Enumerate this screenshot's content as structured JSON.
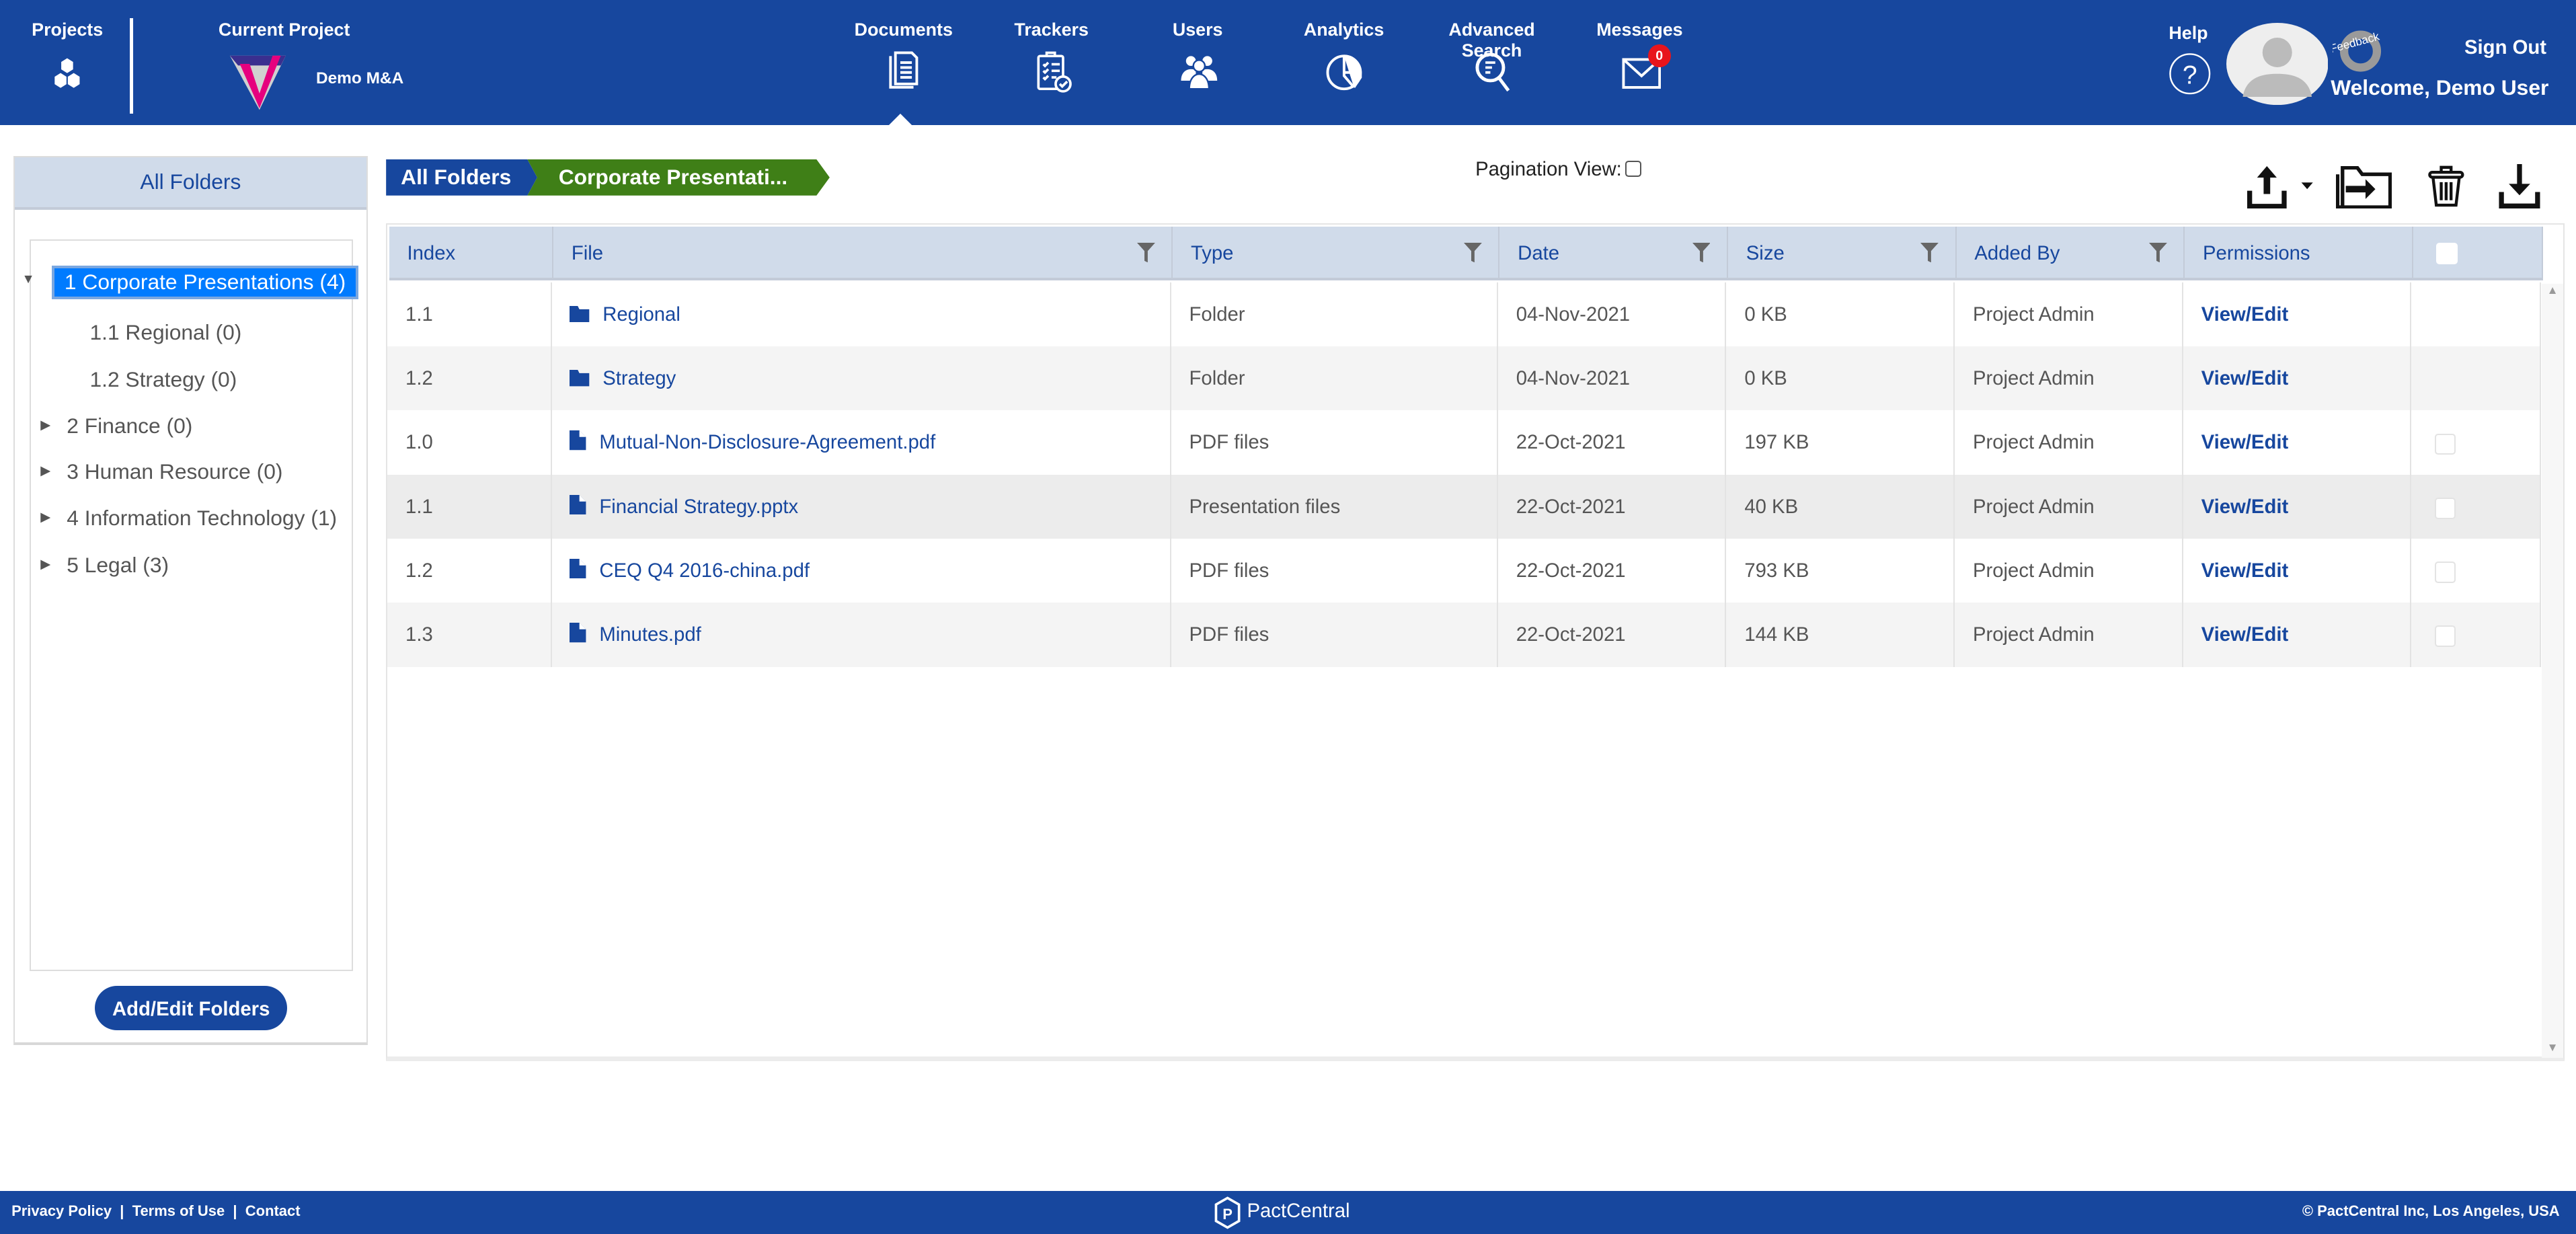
{
  "header": {
    "projects_label": "Projects",
    "current_project_label": "Current Project",
    "project_name": "Demo M&A",
    "nav": [
      {
        "label": "Documents",
        "icon": "documents-icon",
        "active": true
      },
      {
        "label": "Trackers",
        "icon": "clipboard-check-icon"
      },
      {
        "label": "Users",
        "icon": "users-icon"
      },
      {
        "label": "Analytics",
        "icon": "pie-chart-icon"
      },
      {
        "label": "Advanced Search",
        "icon": "search-icon"
      },
      {
        "label": "Messages",
        "icon": "envelope-icon",
        "badge": "0"
      }
    ],
    "help_label": "Help",
    "feedback_label": "Feedback",
    "sign_out": "Sign Out",
    "welcome": "Welcome, Demo User",
    "brand_color": "#17479e"
  },
  "sidebar": {
    "title": "All Folders",
    "tree": [
      {
        "label": "1 Corporate Presentations (4)",
        "expanded": true,
        "selected": true
      },
      {
        "label": "1.1 Regional (0)"
      },
      {
        "label": "1.2 Strategy (0)"
      },
      {
        "label": "2 Finance (0)"
      },
      {
        "label": "3 Human Resource (0)"
      },
      {
        "label": "4 Information Technology (1)"
      },
      {
        "label": "5 Legal (3)"
      }
    ],
    "add_edit_button": "Add/Edit Folders"
  },
  "breadcrumb": [
    "All Folders",
    "Corporate Presentati..."
  ],
  "pagination_view_label": "Pagination View:",
  "table": {
    "columns": [
      "Index",
      "File",
      "Type",
      "Date",
      "Size",
      "Added By",
      "Permissions"
    ],
    "rows": [
      {
        "index": "1.1",
        "file": "Regional",
        "kind": "folder",
        "type": "Folder",
        "date": "04-Nov-2021",
        "size": "0 KB",
        "added_by": "Project Admin",
        "permissions": "View/Edit"
      },
      {
        "index": "1.2",
        "file": "Strategy",
        "kind": "folder",
        "type": "Folder",
        "date": "04-Nov-2021",
        "size": "0 KB",
        "added_by": "Project Admin",
        "permissions": "View/Edit"
      },
      {
        "index": "1.0",
        "file": "Mutual-Non-Disclosure-Agreement.pdf",
        "kind": "file",
        "type": "PDF files",
        "date": "22-Oct-2021",
        "size": "197 KB",
        "added_by": "Project Admin",
        "permissions": "View/Edit"
      },
      {
        "index": "1.1",
        "file": "Financial Strategy.pptx",
        "kind": "file",
        "type": "Presentation files",
        "date": "22-Oct-2021",
        "size": "40 KB",
        "added_by": "Project Admin",
        "permissions": "View/Edit"
      },
      {
        "index": "1.2",
        "file": "CEQ Q4 2016-china.pdf",
        "kind": "file",
        "type": "PDF files",
        "date": "22-Oct-2021",
        "size": "793 KB",
        "added_by": "Project Admin",
        "permissions": "View/Edit"
      },
      {
        "index": "1.3",
        "file": "Minutes.pdf",
        "kind": "file",
        "type": "PDF files",
        "date": "22-Oct-2021",
        "size": "144 KB",
        "added_by": "Project Admin",
        "permissions": "View/Edit"
      }
    ]
  },
  "footer": {
    "links": [
      "Privacy Policy",
      "Terms of Use",
      "Contact"
    ],
    "brand": "PactCentral",
    "copyright": "© PactCentral Inc, Los Angeles, USA"
  }
}
